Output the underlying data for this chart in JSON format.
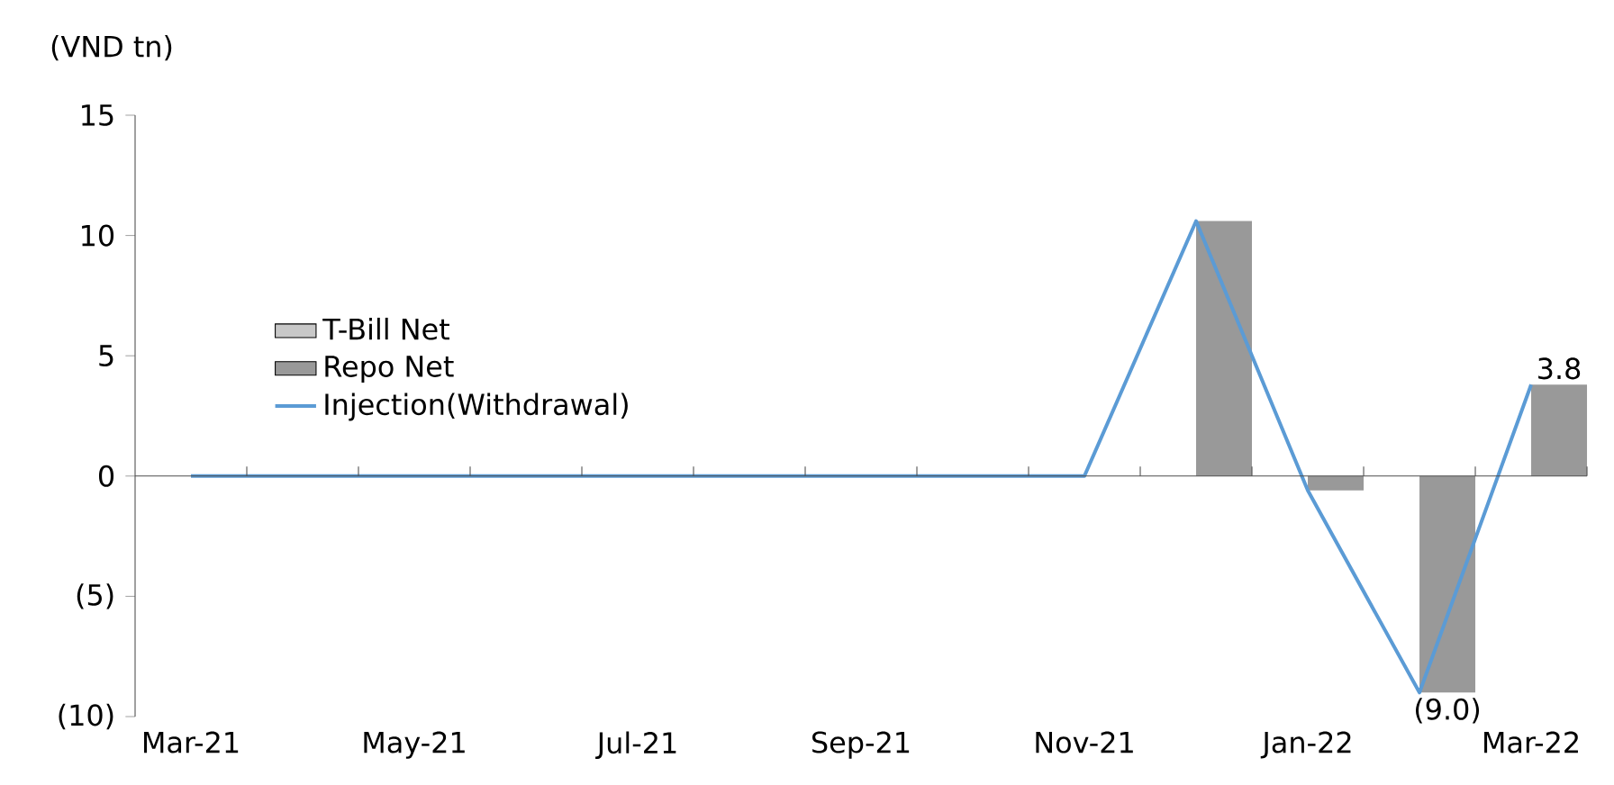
{
  "chart_data": {
    "type": "bar",
    "ylabel": "(VND tn)",
    "categories": [
      "Mar-21",
      null,
      "May-21",
      null,
      "Jul-21",
      null,
      "Sep-21",
      null,
      "Nov-21",
      null,
      "Jan-22",
      null,
      "Mar-22"
    ],
    "series": [
      {
        "name": "T-Bill Net",
        "color": "#c8c8c8",
        "values": [
          0,
          0,
          0,
          0,
          0,
          0,
          0,
          0,
          0,
          0,
          0,
          0,
          0
        ]
      },
      {
        "name": "Repo Net",
        "color": "#999999",
        "values": [
          0,
          0,
          0,
          0,
          0,
          0,
          0,
          0,
          0,
          10.6,
          -0.6,
          -9.0,
          3.8
        ],
        "value_labels": [
          null,
          null,
          null,
          null,
          null,
          null,
          null,
          null,
          null,
          null,
          null,
          "(9.0)",
          "3.8"
        ]
      },
      {
        "name": "Injection(Withdrawal)",
        "type": "line",
        "color": "#5b9bd5",
        "values": [
          0,
          0,
          0,
          0,
          0,
          0,
          0,
          0,
          0,
          10.6,
          -0.6,
          -9.0,
          3.8
        ]
      }
    ],
    "ylim": [
      -10,
      15
    ],
    "yticks": [
      {
        "value": -10,
        "label": "(10)"
      },
      {
        "value": -5,
        "label": "(5)"
      },
      0,
      5,
      10,
      15
    ],
    "legend": "center left",
    "marker": "none",
    "line_style": "solid"
  }
}
